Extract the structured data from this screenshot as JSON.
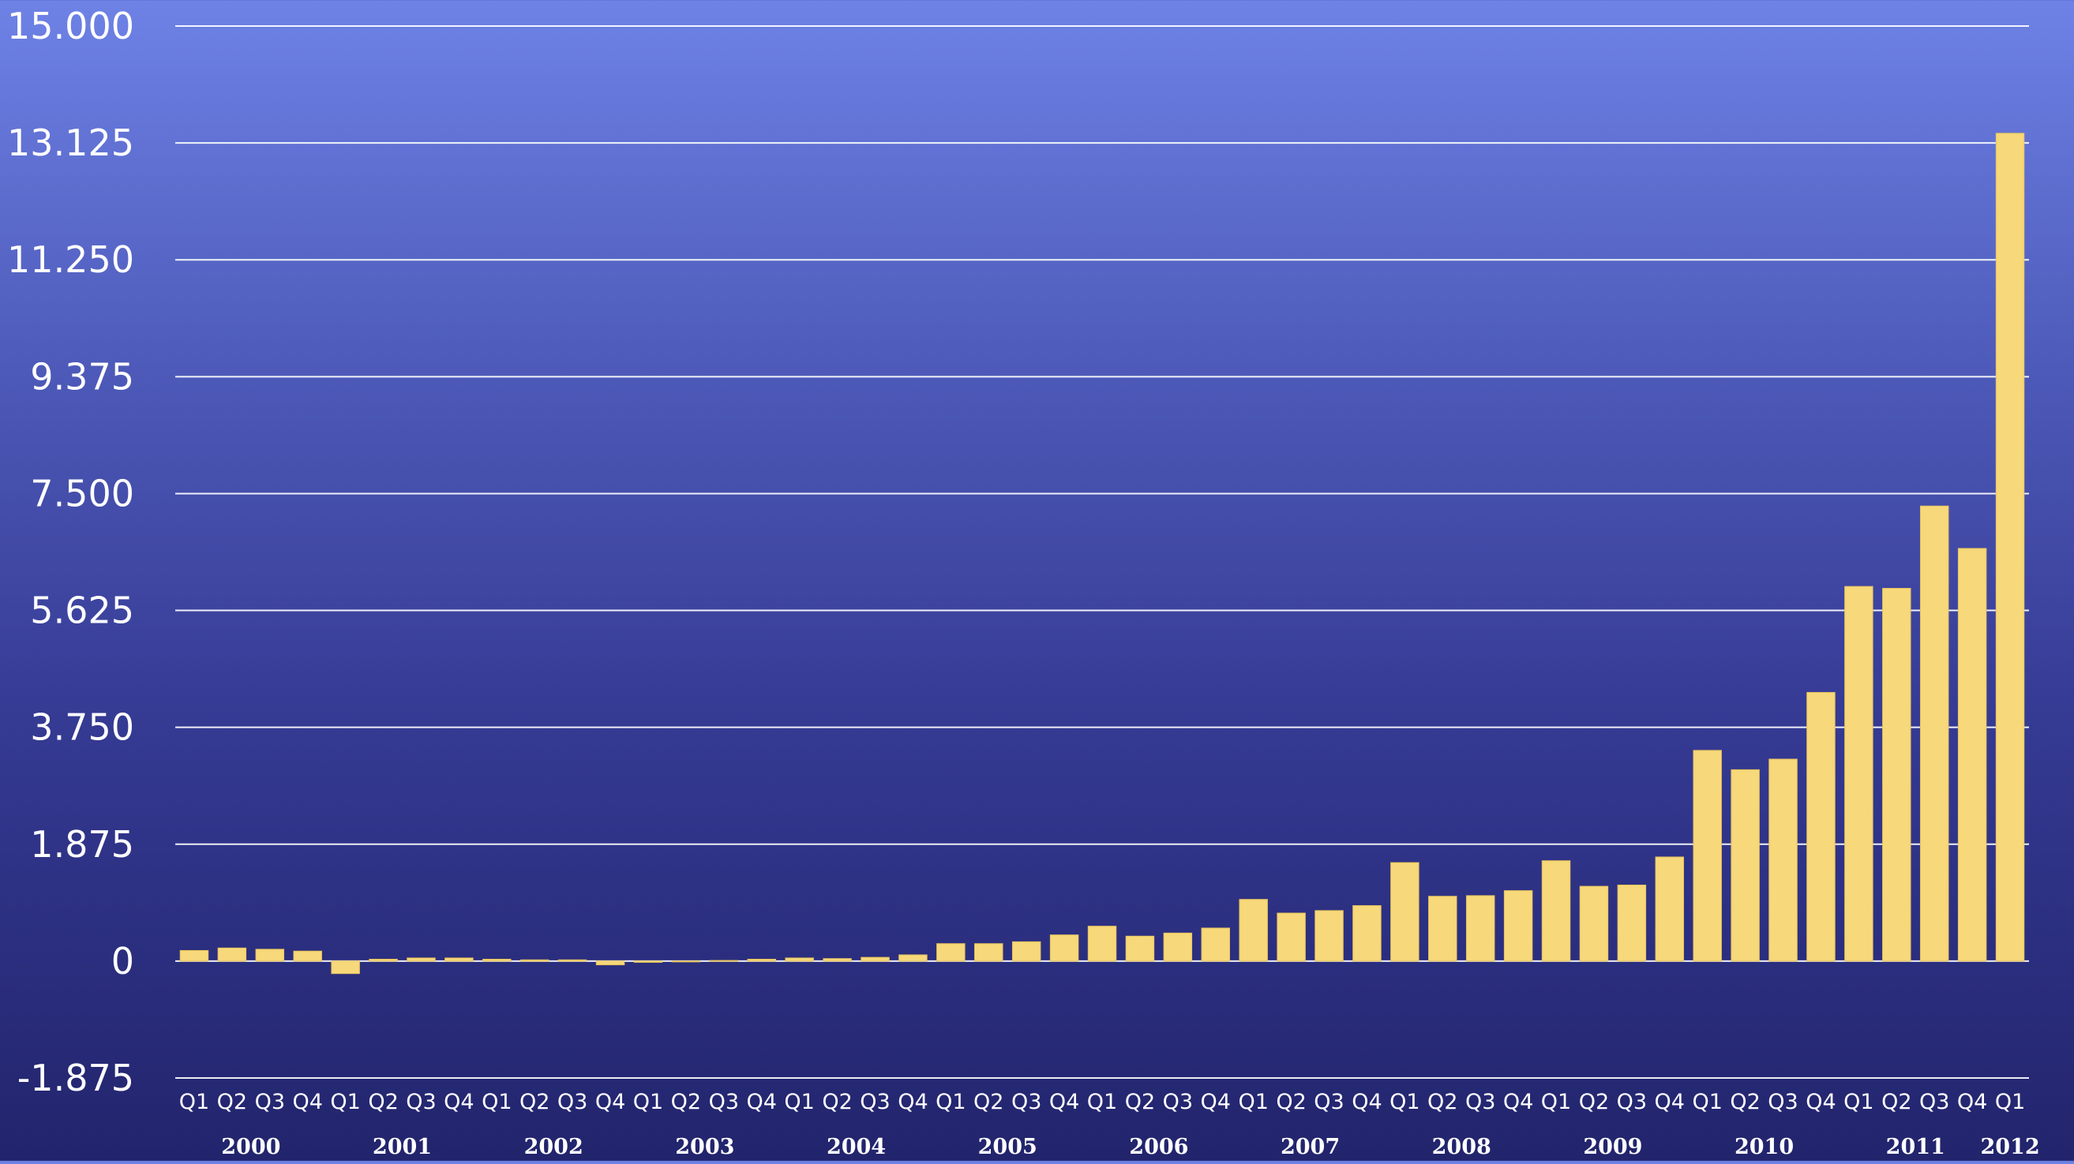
{
  "chart_data": {
    "type": "bar",
    "title": "",
    "xlabel": "",
    "ylabel": "",
    "ylim": [
      -1.875,
      15.0
    ],
    "y_ticks": [
      "15.000",
      "13.125",
      "11.250",
      "9.375",
      "7.500",
      "5.625",
      "3.750",
      "1.875",
      "0",
      "-1.875"
    ],
    "y_tick_values": [
      15.0,
      13.125,
      11.25,
      9.375,
      7.5,
      5.625,
      3.75,
      1.875,
      0,
      -1.875
    ],
    "grid": true,
    "legend": "none",
    "colors": {
      "bar": "#f7d87a",
      "grid": "#ffffff",
      "text": "#ffffff"
    },
    "categories": [
      "Q1",
      "Q2",
      "Q3",
      "Q4",
      "Q1",
      "Q2",
      "Q3",
      "Q4",
      "Q1",
      "Q2",
      "Q3",
      "Q4",
      "Q1",
      "Q2",
      "Q3",
      "Q4",
      "Q1",
      "Q2",
      "Q3",
      "Q4",
      "Q1",
      "Q2",
      "Q3",
      "Q4",
      "Q1",
      "Q2",
      "Q3",
      "Q4",
      "Q1",
      "Q2",
      "Q3",
      "Q4",
      "Q1",
      "Q2",
      "Q3",
      "Q4",
      "Q1",
      "Q2",
      "Q3",
      "Q4",
      "Q1",
      "Q2",
      "Q3",
      "Q4",
      "Q1",
      "Q2",
      "Q3",
      "Q4",
      "Q1"
    ],
    "years": [
      {
        "label": "2000",
        "start": 0,
        "count": 4
      },
      {
        "label": "2001",
        "start": 4,
        "count": 4
      },
      {
        "label": "2002",
        "start": 8,
        "count": 4
      },
      {
        "label": "2003",
        "start": 12,
        "count": 4
      },
      {
        "label": "2004",
        "start": 16,
        "count": 4
      },
      {
        "label": "2005",
        "start": 20,
        "count": 4
      },
      {
        "label": "2006",
        "start": 24,
        "count": 4
      },
      {
        "label": "2007",
        "start": 28,
        "count": 4
      },
      {
        "label": "2008",
        "start": 32,
        "count": 4
      },
      {
        "label": "2009",
        "start": 36,
        "count": 4
      },
      {
        "label": "2010",
        "start": 40,
        "count": 4
      },
      {
        "label": "2011",
        "start": 44,
        "count": 4
      },
      {
        "label": "2012",
        "start": 48,
        "count": 1
      }
    ],
    "values": [
      0.17,
      0.21,
      0.19,
      0.16,
      -0.2,
      0.03,
      0.05,
      0.05,
      0.03,
      0.02,
      0.02,
      -0.06,
      -0.02,
      -0.01,
      0.01,
      0.03,
      0.05,
      0.04,
      0.06,
      0.1,
      0.28,
      0.28,
      0.31,
      0.42,
      0.56,
      0.4,
      0.45,
      0.53,
      0.99,
      0.77,
      0.81,
      0.89,
      1.58,
      1.04,
      1.05,
      1.13,
      1.61,
      1.2,
      1.22,
      1.67,
      3.38,
      3.07,
      3.24,
      4.31,
      6.01,
      5.98,
      7.3,
      6.62,
      13.28
    ]
  }
}
